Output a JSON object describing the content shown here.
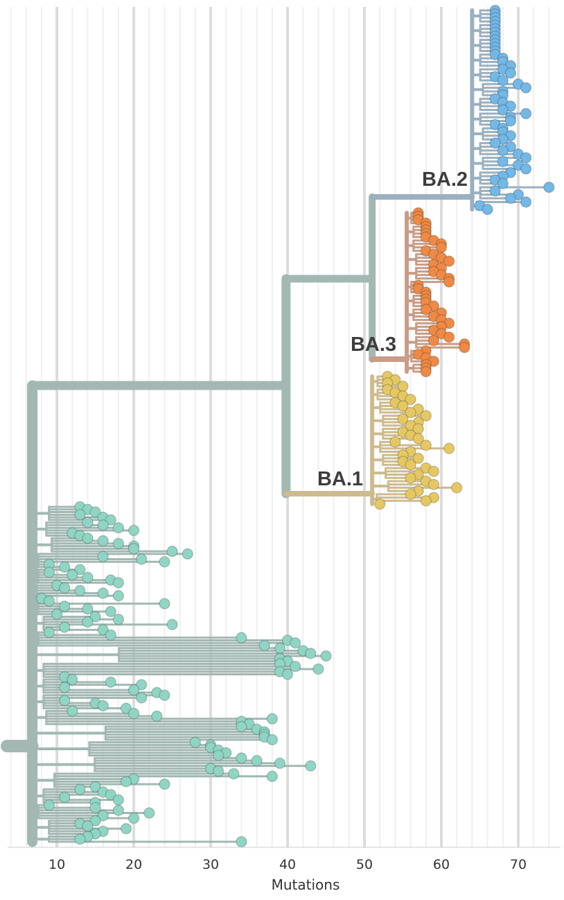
{
  "chart_data": {
    "type": "phylogenetic-tree",
    "xlabel": "Mutations",
    "xticks": [
      10,
      20,
      30,
      40,
      50,
      60,
      70
    ],
    "xlim": [
      3.5,
      75.5
    ],
    "orientation": "rectangular",
    "grid": "vertical",
    "root_x": 3.5,
    "clades": [
      {
        "name": "BA.1",
        "label": "BA.1",
        "color": "#e5c863",
        "branch_color": "#cdbb8f",
        "parent_x": 39.8,
        "node_x": 51,
        "tips": [
          53,
          54,
          53,
          55,
          53,
          54,
          55,
          56,
          54,
          55,
          57,
          56,
          58,
          55,
          57,
          56,
          57,
          55,
          56,
          57,
          54,
          58,
          61,
          56,
          55,
          57,
          55,
          56,
          58,
          59,
          57,
          56,
          58,
          59,
          62,
          57,
          56,
          59,
          58,
          52
        ]
      },
      {
        "name": "BA.2",
        "label": "BA.2",
        "color": "#73b8e6",
        "branch_color": "#9ab0bf",
        "parent_x": 51,
        "node_x": 64,
        "tips": [
          67,
          67,
          67,
          67,
          67,
          67,
          67,
          67,
          67,
          67,
          67,
          67,
          67,
          68,
          68,
          69,
          68,
          69,
          67,
          68,
          70,
          71,
          68,
          68,
          67,
          68,
          69,
          68,
          71,
          69,
          69,
          67,
          68,
          68,
          69,
          68,
          67,
          69,
          68,
          70,
          71,
          68,
          70,
          71,
          69,
          68,
          67,
          68,
          74,
          67,
          70,
          69,
          71,
          65,
          66
        ]
      },
      {
        "name": "BA.3",
        "label": "BA.3",
        "color": "#ee8a45",
        "branch_color": "#c89c86",
        "parent_x": 51,
        "node_x": 55.5,
        "tips": [
          57,
          57,
          57,
          58,
          58,
          58,
          58,
          58,
          59,
          60,
          60,
          58,
          59,
          60,
          61,
          59,
          60,
          59,
          60,
          61,
          61,
          57,
          57,
          58,
          58,
          58,
          58,
          59,
          58,
          60,
          59,
          60,
          61,
          60,
          59,
          60,
          61,
          59,
          63,
          63,
          58,
          57,
          58,
          59,
          58,
          58,
          58
        ]
      },
      {
        "name": "basal",
        "label": "",
        "color": "#90d5c3",
        "branch_color": "#a3b8b3",
        "parent_x": 3.5,
        "node_x": 6.8,
        "tips": [
          13,
          14,
          15,
          13,
          16,
          17,
          14,
          16,
          18,
          20,
          12,
          13,
          14,
          16,
          18,
          20,
          20,
          25,
          27,
          16,
          21,
          24,
          9,
          11,
          13,
          9,
          12,
          14,
          17,
          18,
          10,
          11,
          13,
          16,
          18,
          8,
          9,
          24,
          11,
          14,
          17,
          10,
          15,
          18,
          14,
          25,
          11,
          16,
          9,
          17,
          34,
          40,
          41,
          37,
          39,
          42,
          43,
          45,
          39,
          40,
          39,
          41,
          44,
          39,
          40,
          11,
          12,
          17,
          21,
          11,
          20,
          23,
          24,
          21,
          11,
          15,
          16,
          19,
          12,
          20,
          23,
          38,
          34,
          35,
          34,
          36,
          37,
          37,
          37,
          38,
          28,
          30,
          30,
          31,
          32,
          31,
          34,
          36,
          39,
          43,
          30,
          31,
          33,
          38,
          20,
          19,
          24,
          15,
          13,
          16,
          17,
          11,
          18,
          15,
          9,
          15,
          18,
          22,
          16,
          20,
          15,
          13,
          14,
          19,
          16,
          15,
          14,
          13,
          34
        ]
      }
    ],
    "labeled_clades": [
      "BA.2",
      "BA.3",
      "BA.1"
    ]
  }
}
